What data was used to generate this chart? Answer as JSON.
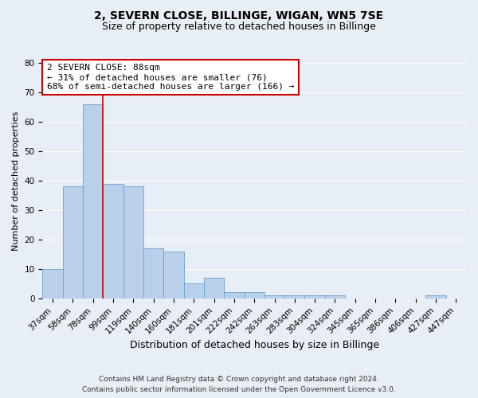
{
  "title": "2, SEVERN CLOSE, BILLINGE, WIGAN, WN5 7SE",
  "subtitle": "Size of property relative to detached houses in Billinge",
  "xlabel": "Distribution of detached houses by size in Billinge",
  "ylabel": "Number of detached properties",
  "categories": [
    "37sqm",
    "58sqm",
    "78sqm",
    "99sqm",
    "119sqm",
    "140sqm",
    "160sqm",
    "181sqm",
    "201sqm",
    "222sqm",
    "242sqm",
    "263sqm",
    "283sqm",
    "304sqm",
    "324sqm",
    "345sqm",
    "365sqm",
    "386sqm",
    "406sqm",
    "427sqm",
    "447sqm"
  ],
  "values": [
    10,
    38,
    66,
    39,
    38,
    17,
    16,
    5,
    7,
    2,
    2,
    1,
    1,
    1,
    1,
    0,
    0,
    0,
    0,
    1,
    0
  ],
  "bar_color": "#b8d0ea",
  "bar_edge_color": "#6aa0cc",
  "background_color": "#e8eef5",
  "grid_color": "#ffffff",
  "vline_color": "#cc0000",
  "vline_x": 2.5,
  "annotation_line1": "2 SEVERN CLOSE: 88sqm",
  "annotation_line2": "← 31% of detached houses are smaller (76)",
  "annotation_line3": "68% of semi-detached houses are larger (166) →",
  "annotation_box_color": "#ffffff",
  "annotation_box_edge_color": "#cc0000",
  "ylim": [
    0,
    80
  ],
  "yticks": [
    0,
    10,
    20,
    30,
    40,
    50,
    60,
    70,
    80
  ],
  "footnote1": "Contains HM Land Registry data © Crown copyright and database right 2024.",
  "footnote2": "Contains public sector information licensed under the Open Government Licence v3.0.",
  "title_fontsize": 10,
  "subtitle_fontsize": 9,
  "xlabel_fontsize": 9,
  "ylabel_fontsize": 8,
  "tick_fontsize": 7.5,
  "annot_fontsize": 8,
  "footnote_fontsize": 6.5
}
